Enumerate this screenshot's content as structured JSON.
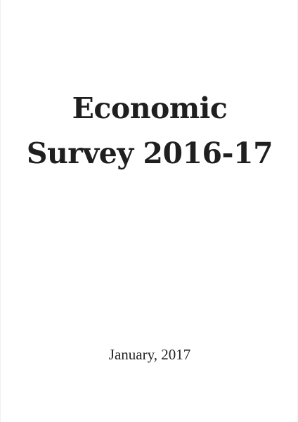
{
  "cover": {
    "title_line_1": "Economic",
    "title_line_2": "Survey 2016-17",
    "date": "January, 2017"
  },
  "colors": {
    "background": "#ffffff",
    "text": "#1f1f1f"
  }
}
